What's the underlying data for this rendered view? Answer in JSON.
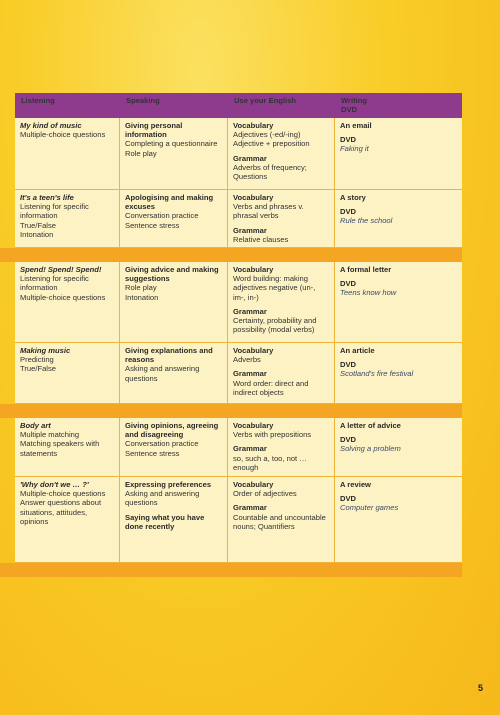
{
  "header": {
    "columns": [
      "Listening",
      "Speaking",
      "Use your English",
      "Writing"
    ],
    "dvd": "DVD"
  },
  "sections": [
    {
      "rows": [
        {
          "listening": {
            "title": "My kind of music",
            "lines": [
              "Multiple-choice questions"
            ]
          },
          "speaking": [
            {
              "heading": "Giving personal information",
              "lines": [
                "Completing a questionnaire",
                "Role play"
              ]
            }
          ],
          "english": [
            {
              "heading": "Vocabulary",
              "lines": [
                "Adjectives (-ed/-ing)",
                "Adjective + preposition"
              ]
            },
            {
              "heading": "Grammar",
              "lines": [
                "Adverbs of frequency; Questions"
              ]
            }
          ],
          "writing": {
            "task": "An email",
            "dvd": "DVD",
            "film": "Faking it"
          }
        },
        {
          "listening": {
            "title": "It's a teen's life",
            "lines": [
              "Listening for specific information",
              "True/False",
              "Intonation"
            ]
          },
          "speaking": [
            {
              "heading": "Apologising and making excuses",
              "lines": [
                "Conversation practice",
                "Sentence stress"
              ]
            }
          ],
          "english": [
            {
              "heading": "Vocabulary",
              "lines": [
                "Verbs and phrases v. phrasal verbs"
              ]
            },
            {
              "heading": "Grammar",
              "lines": [
                "Relative clauses"
              ]
            }
          ],
          "writing": {
            "task": "A story",
            "dvd": "DVD",
            "film": "Rule the school"
          }
        }
      ]
    },
    {
      "rows": [
        {
          "listening": {
            "title": "Spend! Spend! Spend!",
            "lines": [
              "Listening for specific information",
              "Multiple-choice questions"
            ]
          },
          "speaking": [
            {
              "heading": "Giving advice and making suggestions",
              "lines": [
                "Role play",
                "Intonation"
              ]
            }
          ],
          "english": [
            {
              "heading": "Vocabulary",
              "lines": [
                "Word building: making adjectives negative (un-, im-, in-)"
              ]
            },
            {
              "heading": "Grammar",
              "lines": [
                "Certainty, probability and possibility (modal verbs)"
              ]
            }
          ],
          "writing": {
            "task": "A formal letter",
            "dvd": "DVD",
            "film": "Teens know how"
          }
        },
        {
          "listening": {
            "title": "Making music",
            "lines": [
              "Predicting",
              "True/False"
            ]
          },
          "speaking": [
            {
              "heading": "Giving explanations and reasons",
              "lines": [
                "Asking and answering questions"
              ]
            }
          ],
          "english": [
            {
              "heading": "Vocabulary",
              "lines": [
                "Adverbs"
              ]
            },
            {
              "heading": "Grammar",
              "lines": [
                "Word order: direct and indirect objects"
              ]
            }
          ],
          "writing": {
            "task": "An article",
            "dvd": "DVD",
            "film": "Scotland's fire festival"
          }
        }
      ]
    },
    {
      "rows": [
        {
          "listening": {
            "title": "Body art",
            "lines": [
              "Multiple matching",
              "Matching speakers with statements"
            ]
          },
          "speaking": [
            {
              "heading": "Giving opinions, agreeing and disagreeing",
              "lines": [
                "Conversation practice",
                "Sentence stress"
              ]
            }
          ],
          "english": [
            {
              "heading": "Vocabulary",
              "lines": [
                "Verbs with prepositions"
              ]
            },
            {
              "heading": "Grammar",
              "lines": [
                "so, such a, too, not … enough"
              ]
            }
          ],
          "writing": {
            "task": "A letter of advice",
            "dvd": "DVD",
            "film": "Solving a problem"
          }
        },
        {
          "listening": {
            "title": "'Why don't we … ?'",
            "lines": [
              "Multiple-choice questions",
              "Answer questions about situations, attitudes, opinions"
            ]
          },
          "speaking": [
            {
              "heading": "Expressing preferences",
              "lines": [
                "Asking and answering questions"
              ]
            },
            {
              "heading": "Saying what you have done recently",
              "lines": []
            }
          ],
          "english": [
            {
              "heading": "Vocabulary",
              "lines": [
                "Order of adjectives"
              ]
            },
            {
              "heading": "Grammar",
              "lines": [
                "Countable and uncountable nouns; Quantifiers"
              ]
            }
          ],
          "writing": {
            "task": "A review",
            "dvd": "DVD",
            "film": "Computer games"
          }
        }
      ]
    }
  ],
  "page_number": "5"
}
